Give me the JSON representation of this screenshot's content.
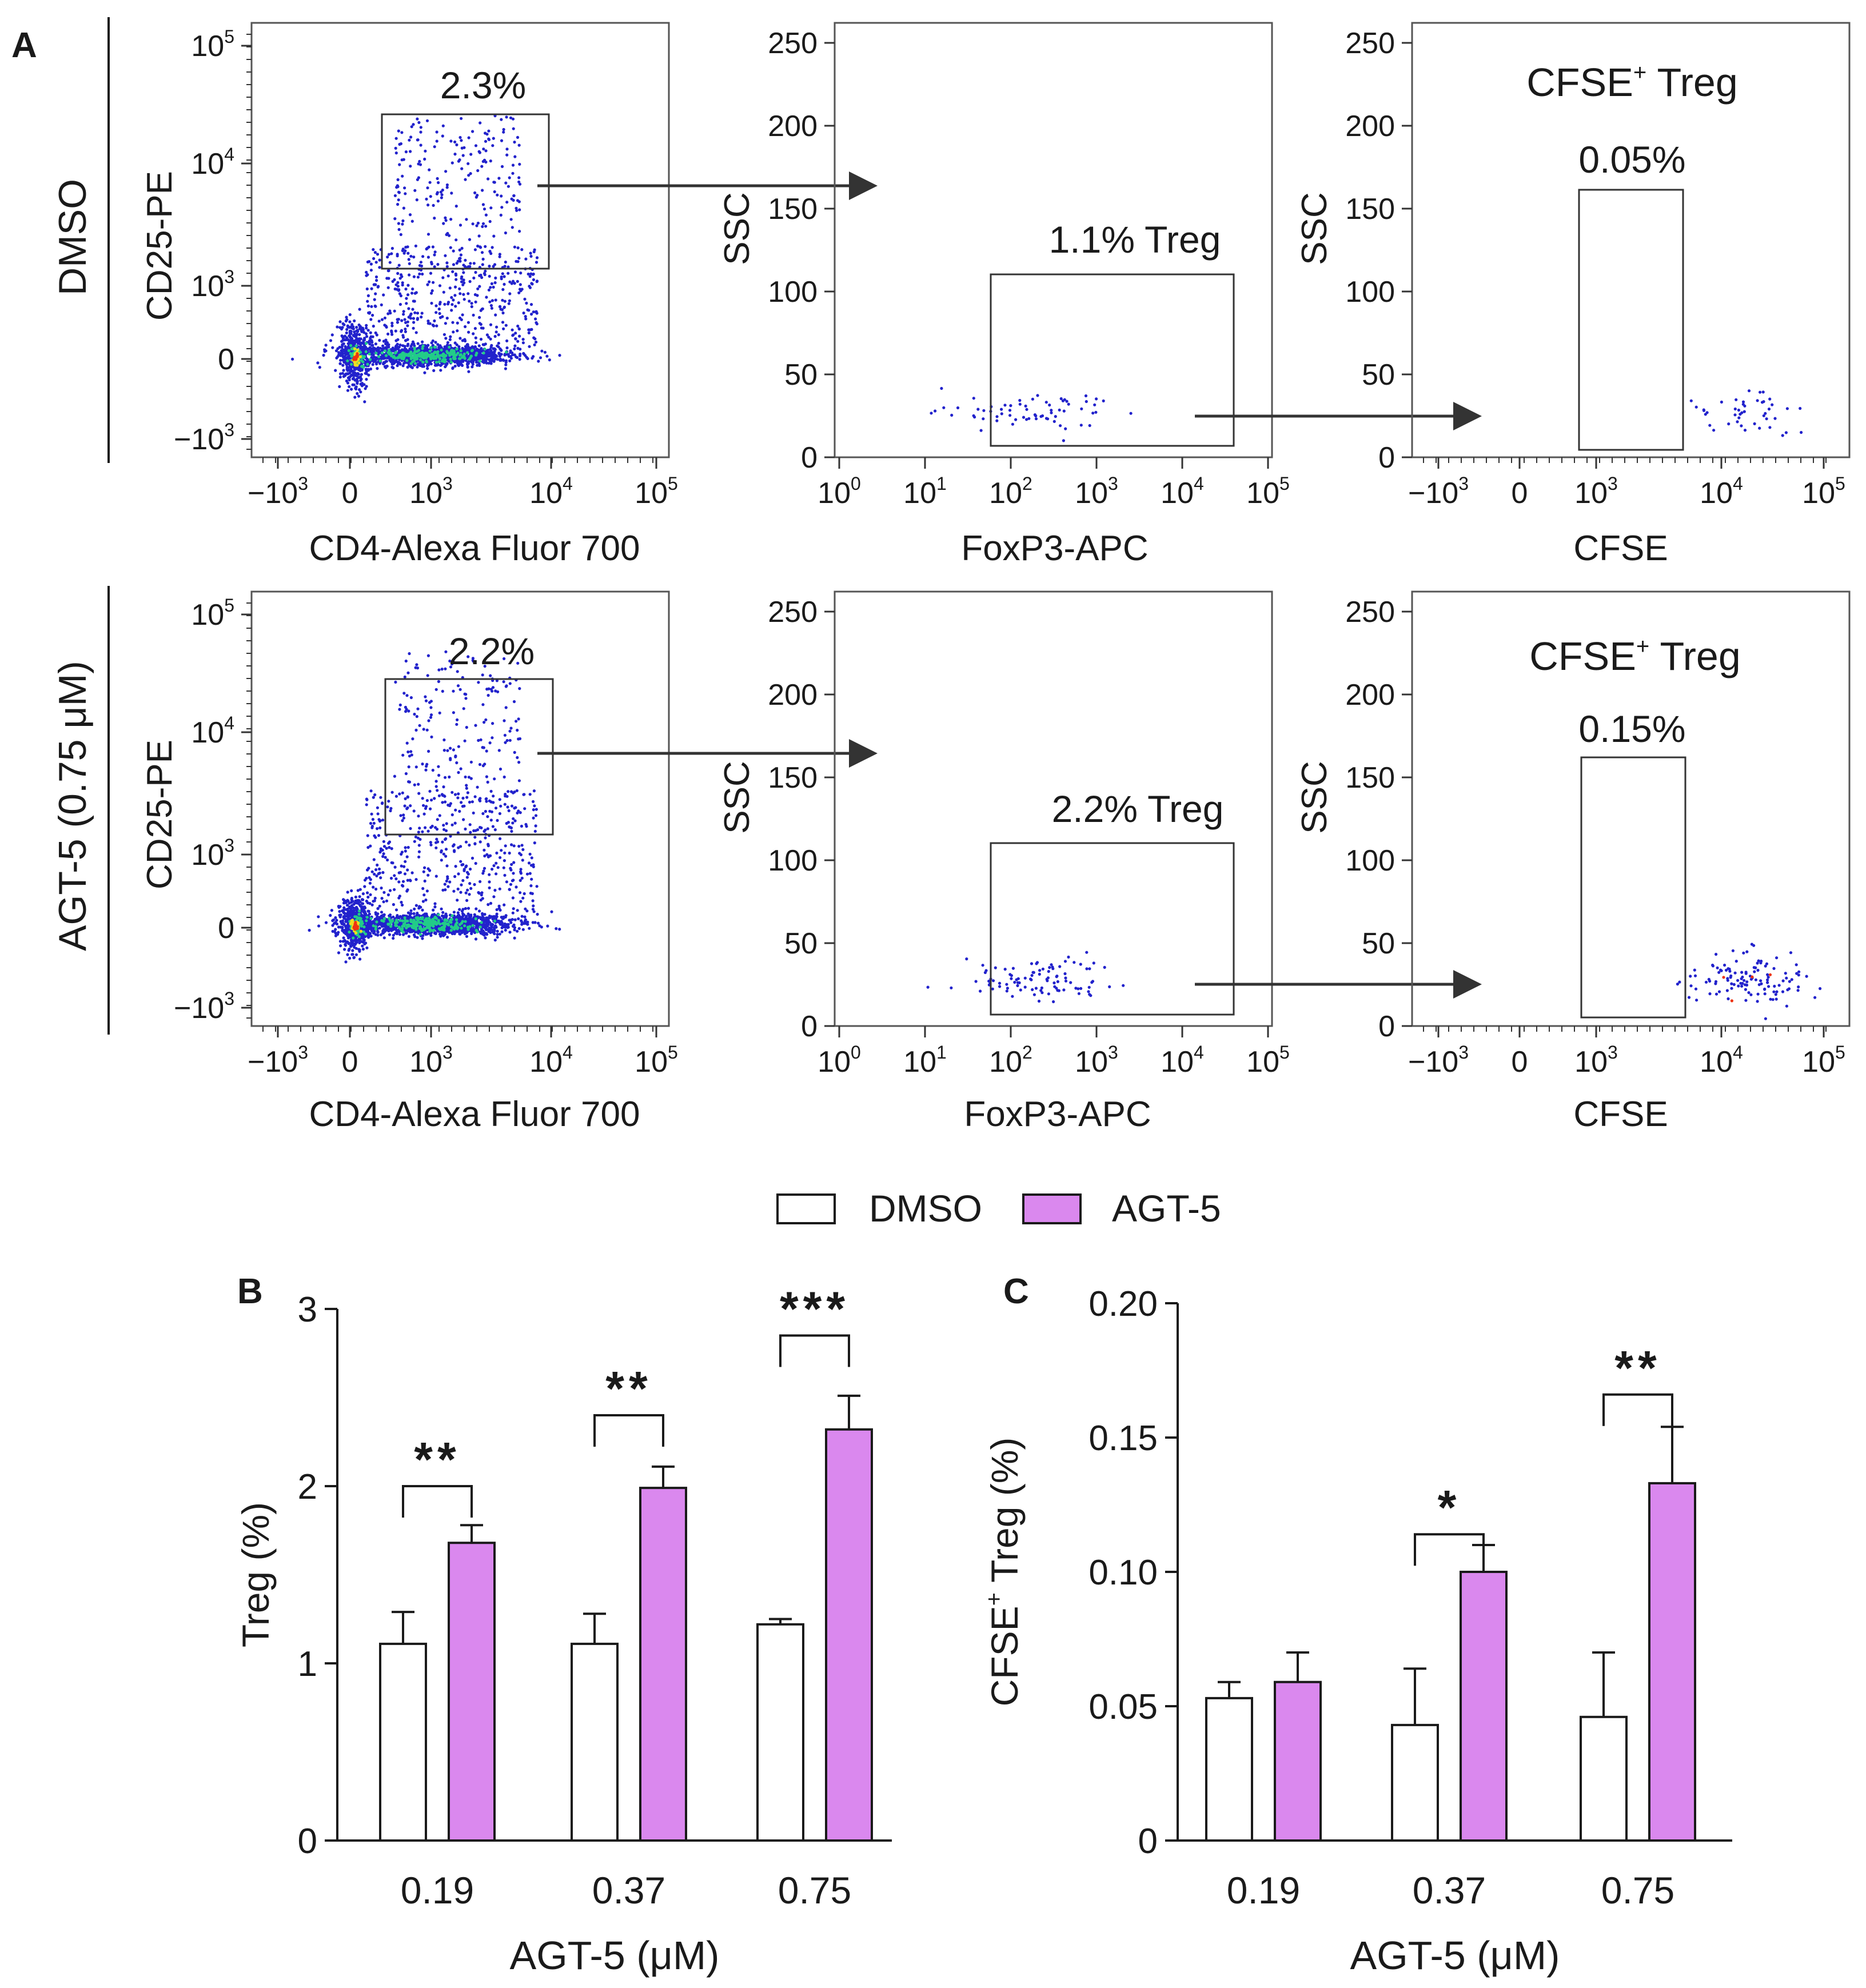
{
  "panel_labels": {
    "a": "A",
    "b": "B",
    "c": "C"
  },
  "colors": {
    "dmso": "#ffffff",
    "agt5": "#da88ee",
    "ink": "#1a1a1a",
    "dots": "#2222cc",
    "core_green": "#22cc88",
    "core_yellow": "#eedd22",
    "core_red": "#ee3311"
  },
  "rows": [
    {
      "label": "DMSO",
      "gate1_pct": "2.3%",
      "gate2_pct": "1.1% Treg",
      "gate3_title": "CFSE",
      "gate3_title_sup": "+",
      "gate3_title_rest": " Treg",
      "gate3_pct": "0.05%"
    },
    {
      "label": "AGT-5 (0.75 μM)",
      "gate1_pct": "2.2%",
      "gate2_pct": "2.2% Treg",
      "gate3_title": "CFSE",
      "gate3_title_sup": "+",
      "gate3_title_rest": " Treg",
      "gate3_pct": "0.15%"
    }
  ],
  "flow_axes": {
    "p1_xlabel": "CD4-Alexa Fluor 700",
    "p1_ylabel": "CD25-PE",
    "p1_xticks": [
      "−10",
      "0",
      "10",
      "10",
      "10"
    ],
    "p1_xtick_exp": [
      "3",
      "",
      "3",
      "4",
      "5"
    ],
    "p1_yticks": [
      "−10",
      "0",
      "10",
      "10",
      "10"
    ],
    "p1_ytick_exp": [
      "3",
      "",
      "3",
      "4",
      "5"
    ],
    "p2_xlabel": "FoxP3-APC",
    "p2_ylabel": "SSC",
    "p2_xticks": [
      "10",
      "10",
      "10",
      "10",
      "10",
      "10"
    ],
    "p2_xtick_exp": [
      "0",
      "1",
      "2",
      "3",
      "4",
      "5"
    ],
    "p2_yticks": [
      "0",
      "50",
      "100",
      "150",
      "200",
      "250"
    ],
    "p3_xlabel": "CFSE",
    "p3_ylabel": "SSC",
    "p3_xticks": [
      "−10",
      "0",
      "10",
      "10",
      "10"
    ],
    "p3_xtick_exp": [
      "3",
      "",
      "3",
      "4",
      "5"
    ],
    "p3_yticks": [
      "0",
      "50",
      "100",
      "150",
      "200",
      "250"
    ]
  },
  "legend": {
    "dmso": "DMSO",
    "agt5": "AGT-5"
  },
  "chart_data": [
    {
      "type": "bar",
      "id": "B",
      "title": "",
      "xlabel": "AGT-5 (μM)",
      "ylabel": "Treg (%)",
      "ylim": [
        0,
        3
      ],
      "yticks": [
        0,
        1,
        2,
        3
      ],
      "categories": [
        "0.19",
        "0.37",
        "0.75"
      ],
      "series": [
        {
          "name": "DMSO",
          "values": [
            1.11,
            1.11,
            1.22
          ],
          "errors": [
            0.18,
            0.17,
            0.03
          ]
        },
        {
          "name": "AGT-5",
          "values": [
            1.68,
            1.99,
            2.32
          ],
          "errors": [
            0.1,
            0.12,
            0.19
          ]
        }
      ],
      "significance": [
        "**",
        "**",
        "***"
      ],
      "sig_bracket_y": [
        2.0,
        2.4,
        2.85
      ]
    },
    {
      "type": "bar",
      "id": "C",
      "title": "",
      "xlabel": "AGT-5 (μM)",
      "ylabel": "CFSE",
      "ylabel_sup": "+",
      "ylabel_rest": " Treg (%)",
      "ylim": [
        0,
        0.2
      ],
      "yticks": [
        0,
        0.05,
        0.1,
        0.15,
        0.2
      ],
      "ytick_labels": [
        "0",
        "0.05",
        "0.10",
        "0.15",
        "0.20"
      ],
      "categories": [
        "0.19",
        "0.37",
        "0.75"
      ],
      "series": [
        {
          "name": "DMSO",
          "values": [
            0.053,
            0.043,
            0.046
          ],
          "errors": [
            0.006,
            0.021,
            0.024
          ]
        },
        {
          "name": "AGT-5",
          "values": [
            0.059,
            0.1,
            0.133
          ],
          "errors": [
            0.011,
            0.01,
            0.021
          ]
        }
      ],
      "significance": [
        "",
        "*",
        "**"
      ],
      "sig_bracket_y": [
        null,
        0.114,
        0.166
      ]
    }
  ]
}
